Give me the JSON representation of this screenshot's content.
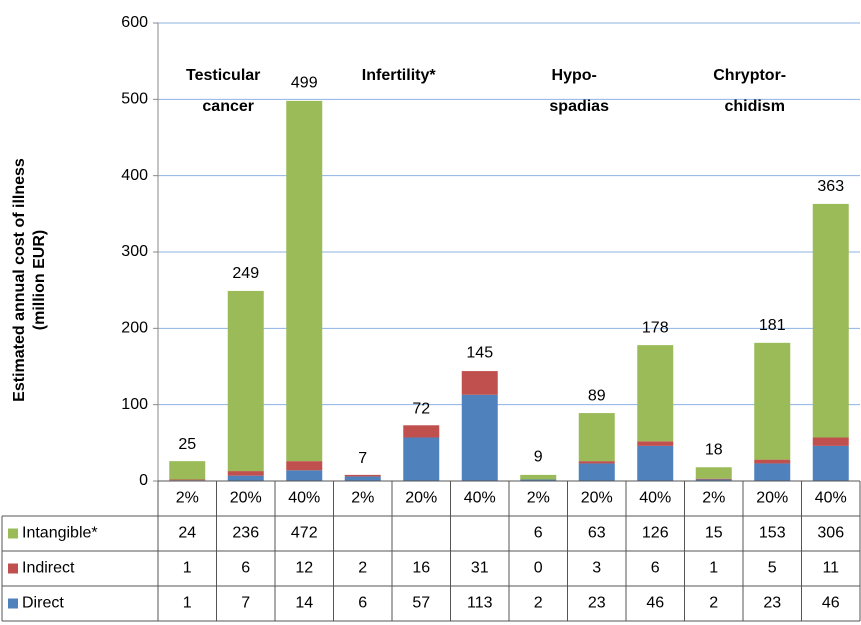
{
  "chart_data": {
    "type": "bar",
    "stacked": true,
    "ylabel": [
      "Estimated annual cost of illness",
      "(million EUR)"
    ],
    "categories": [
      "2%",
      "20%",
      "40%",
      "2%",
      "20%",
      "40%",
      "2%",
      "20%",
      "40%",
      "2%",
      "20%",
      "40%"
    ],
    "group_labels": [
      [
        "Testicular",
        "cancer"
      ],
      [
        "Infertility*"
      ],
      [
        "Hypo-",
        "spadias"
      ],
      [
        "Chryptor-",
        "chidism"
      ]
    ],
    "totals": [
      25,
      249,
      499,
      7,
      72,
      145,
      9,
      89,
      178,
      18,
      181,
      363
    ],
    "series": [
      {
        "name": "Intangible*",
        "color": "#9bbb59",
        "values": [
          24,
          236,
          472,
          null,
          null,
          null,
          6,
          63,
          126,
          15,
          153,
          306
        ]
      },
      {
        "name": "Indirect",
        "color": "#c0504d",
        "values": [
          1,
          6,
          12,
          2,
          16,
          31,
          0,
          3,
          6,
          1,
          5,
          11
        ]
      },
      {
        "name": "Direct",
        "color": "#4f81bd",
        "values": [
          1,
          7,
          14,
          6,
          57,
          113,
          2,
          23,
          46,
          2,
          23,
          46
        ]
      }
    ],
    "ylim": [
      0,
      600
    ],
    "yticks": [
      0,
      100,
      200,
      300,
      400,
      500,
      600
    ],
    "grid": true
  }
}
